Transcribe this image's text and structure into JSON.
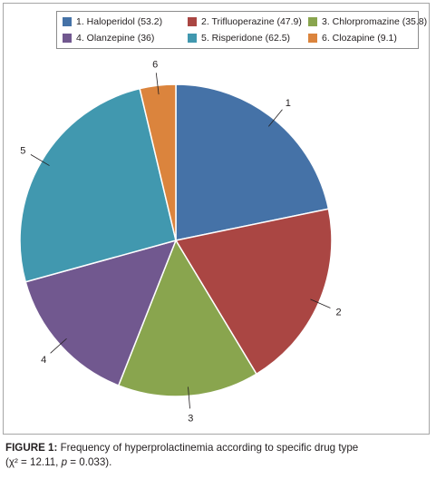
{
  "chart_data": {
    "type": "pie",
    "slices": [
      {
        "label": "1",
        "legend": "1. Haloperidol (53.2)",
        "value": 53.2,
        "color": "#4572a7"
      },
      {
        "label": "2",
        "legend": "2. Trifluoperazine (47.9)",
        "value": 47.9,
        "color": "#aa4643"
      },
      {
        "label": "3",
        "legend": "3. Chlorpromazine (35.8)",
        "value": 35.8,
        "color": "#89a54e"
      },
      {
        "label": "4",
        "legend": "4. Olanzepine (36)",
        "value": 36,
        "color": "#71588f"
      },
      {
        "label": "5",
        "legend": "5. Risperidone (62.5)",
        "value": 62.5,
        "color": "#4198af"
      },
      {
        "label": "6",
        "legend": "6. Clozapine (9.1)",
        "value": 9.1,
        "color": "#db843d"
      }
    ],
    "legend_position": "top"
  },
  "caption": {
    "figure_label": "FIGURE 1:",
    "text_main": "Frequency of hyperprolactinemia according to specific drug type",
    "text_stat_pre": "(χ² = 12.11, ",
    "text_stat_p": "p",
    "text_stat_post": " = 0.033)."
  }
}
